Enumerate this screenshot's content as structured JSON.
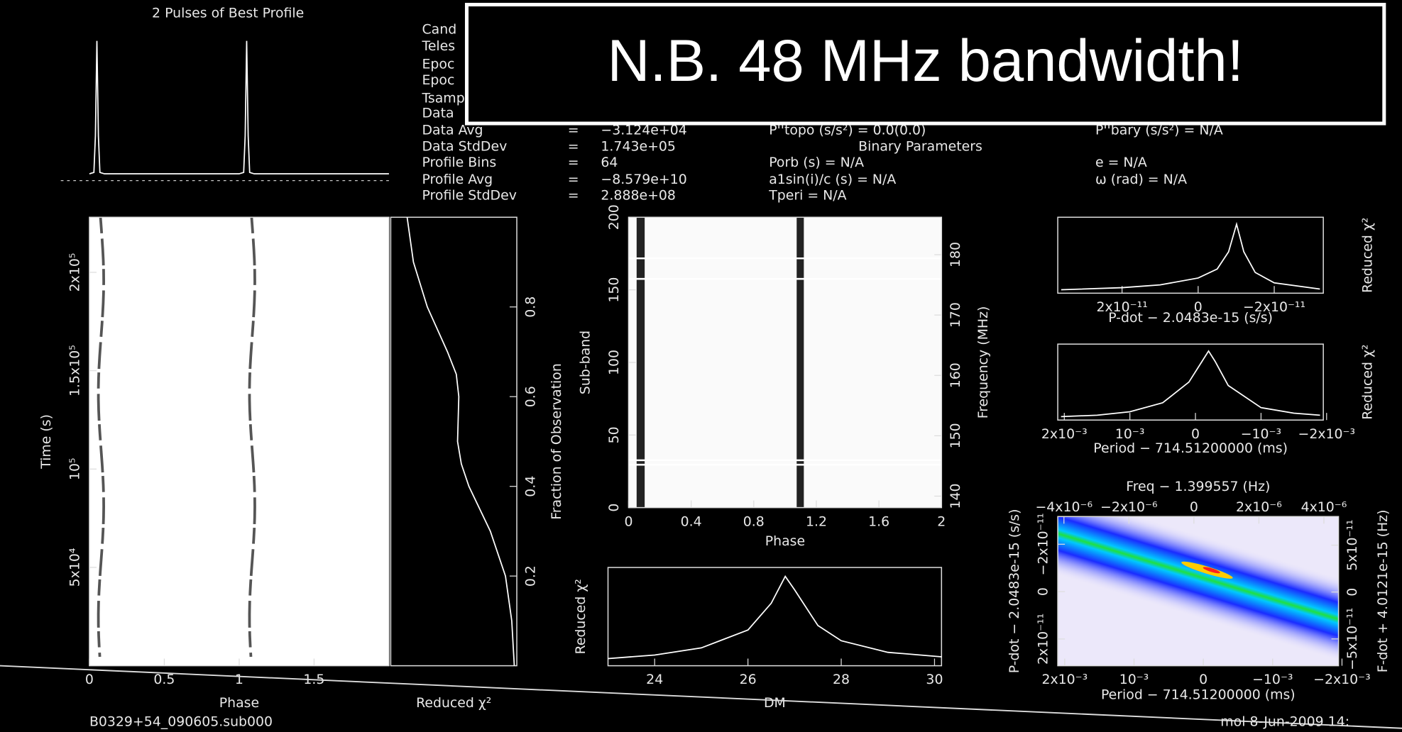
{
  "banner": "N.B. 48 MHz bandwidth!",
  "info": {
    "left": [
      [
        "Cand"
      ],
      [
        "Teles"
      ],
      [
        "Epoc"
      ],
      [
        "Epoc"
      ],
      [
        "Tsamp"
      ],
      [
        "Data"
      ],
      [
        "Data Avg",
        "=",
        "−3.124e+04"
      ],
      [
        "Data StdDev",
        "=",
        "1.743e+05"
      ],
      [
        "Profile Bins",
        "=",
        "64"
      ],
      [
        "Profile Avg",
        "=",
        "−8.579e+10"
      ],
      [
        "Profile StdDev",
        "=",
        "2.888e+08"
      ]
    ],
    "middle": [
      "P''topo (s/s²)  =  0.0(0.0)",
      "Binary Parameters",
      "Porb (s) = N/A",
      "a1sin(i)/c (s) = N/A",
      "Tperi = N/A"
    ],
    "right": [
      "P''bary (s/s²) = N/A",
      "e = N/A",
      "ω (rad) = N/A"
    ]
  },
  "footer": {
    "left": "B0329+54_090605.sub000",
    "right": "mol   8-Jun-2009  14:"
  },
  "chart_data": [
    {
      "type": "line",
      "title": "2 Pulses of Best Profile",
      "color": "#ffffff",
      "x": [
        0,
        0.03,
        0.04,
        0.05,
        0.06,
        0.07,
        0.1,
        1.0,
        1.03,
        1.04,
        1.05,
        1.06,
        1.07,
        1.1,
        2
      ],
      "values": [
        0.02,
        0.03,
        0.3,
        1,
        0.3,
        0.03,
        0.02,
        0.02,
        0.03,
        0.3,
        1,
        0.3,
        0.03,
        0.02,
        0.02
      ],
      "xlim": [
        0,
        2
      ],
      "ylim": [
        -0.05,
        1.05
      ]
    },
    {
      "type": "image",
      "x_label": "Phase",
      "y_label": "Time (s)",
      "xlim": [
        0,
        2
      ],
      "xticks": [
        0,
        0.5,
        1,
        1.5
      ],
      "ylim": [
        0,
        228000
      ],
      "yticks": [
        {
          "value": 50000,
          "label": "5x10⁴"
        },
        {
          "value": 100000,
          "label": "10⁵"
        },
        {
          "value": 150000,
          "label": "1.5x10⁵"
        },
        {
          "value": 200000,
          "label": "2x10⁵"
        }
      ]
    },
    {
      "type": "line",
      "orientation": "vertical",
      "x_label": "Reduced χ²",
      "y_label": "Fraction of Observation",
      "color": "#ffffff",
      "y": [
        0,
        0.1,
        0.2,
        0.3,
        0.4,
        0.45,
        0.5,
        0.6,
        0.65,
        0.7,
        0.8,
        0.9,
        1.0
      ],
      "values": [
        0.98,
        0.96,
        0.91,
        0.79,
        0.62,
        0.56,
        0.53,
        0.54,
        0.52,
        0.45,
        0.29,
        0.18,
        0.13
      ],
      "xlim": [
        0,
        1
      ],
      "ylim": [
        0,
        1
      ],
      "yticks": [
        0.2,
        0.4,
        0.6,
        0.8
      ]
    },
    {
      "type": "image",
      "x_label": "Phase",
      "y_label": "Sub-band",
      "y2_label": "Frequency (MHz)",
      "xlim": [
        0,
        2
      ],
      "xticks": [
        0,
        0.4,
        0.8,
        1.2,
        1.6,
        2
      ],
      "ylim": [
        0,
        200
      ],
      "yticks": [
        0,
        50,
        100,
        150,
        200
      ],
      "y2lim": [
        138.1,
        186.2
      ],
      "y2ticks": [
        140,
        150,
        160,
        170,
        180
      ]
    },
    {
      "type": "line",
      "x_label": "DM",
      "y_label": "Reduced χ²",
      "color": "#ffffff",
      "x": [
        23,
        24,
        25,
        26,
        26.5,
        26.8,
        27,
        27.5,
        28,
        29,
        30.15
      ],
      "values": [
        0.08,
        0.12,
        0.2,
        0.4,
        0.7,
        1.0,
        0.85,
        0.45,
        0.28,
        0.15,
        0.1
      ],
      "xlim": [
        23,
        30.15
      ],
      "xticks": [
        24,
        26,
        28,
        30
      ],
      "ylim": [
        0,
        1.1
      ]
    },
    {
      "type": "line",
      "x_label": "P-dot − 2.0483e-15 (s/s)",
      "y2_label": "Reduced χ²",
      "color": "#ffffff",
      "x": [
        3.6e-11,
        2e-11,
        1e-11,
        0,
        -5e-12,
        -8e-12,
        -1.01e-11,
        -1.2e-11,
        -1.5e-11,
        -2e-11,
        -3.2e-11
      ],
      "values": [
        0.05,
        0.08,
        0.12,
        0.22,
        0.35,
        0.6,
        1.0,
        0.6,
        0.3,
        0.15,
        0.06
      ],
      "xlim": [
        3.69e-11,
        -3.29e-11
      ],
      "xticks": [
        {
          "value": 2e-11,
          "label": "2x10⁻¹¹"
        },
        0,
        {
          "value": -2e-11,
          "label": "−2x10⁻¹¹"
        }
      ],
      "ylim": [
        0,
        1.1
      ]
    },
    {
      "type": "line",
      "x_label": "Period − 714.51200000 (ms)",
      "y2_label": "Reduced χ²",
      "color": "#ffffff",
      "x": [
        0.00205,
        0.0015,
        0.001,
        0.0005,
        0.0001,
        -0.0001,
        -0.0002,
        -0.0003,
        -0.0005,
        -0.001,
        -0.0015,
        -0.0019
      ],
      "values": [
        0.05,
        0.07,
        0.12,
        0.25,
        0.55,
        0.85,
        1.0,
        0.85,
        0.5,
        0.18,
        0.1,
        0.07
      ],
      "xlim": [
        0.0021,
        -0.00195
      ],
      "xticks": [
        {
          "value": 0.002,
          "label": "2x10⁻³"
        },
        {
          "value": 0.001,
          "label": "10⁻³"
        },
        0,
        {
          "value": -0.001,
          "label": "−10⁻³"
        },
        {
          "value": -0.002,
          "label": "−2x10⁻³"
        }
      ],
      "ylim": [
        0,
        1.1
      ]
    },
    {
      "type": "image",
      "x_label": "Period − 714.51200000 (ms)",
      "x2_label": "Freq − 1.399557 (Hz)",
      "y_label": "P-dot − 2.0483e-15 (s/s)",
      "y2_label": "F-dot + 4.0121e-15 (Hz)",
      "xlim": [
        0.0021,
        -0.00195
      ],
      "xticks": [
        {
          "value": 0.002,
          "label": "2x10⁻³"
        },
        {
          "value": 0.001,
          "label": "10⁻³"
        },
        0,
        {
          "value": -0.001,
          "label": "−10⁻³"
        },
        {
          "value": -0.002,
          "label": "−2x10⁻³"
        }
      ],
      "x2lim": [
        -4.19e-06,
        4.45e-06
      ],
      "x2ticks": [
        {
          "value": -4e-06,
          "label": "−4x10⁻⁶"
        },
        {
          "value": -2e-06,
          "label": "−2x10⁻⁶"
        },
        0,
        {
          "value": 2e-06,
          "label": "2x10⁻⁶"
        },
        {
          "value": 4e-06,
          "label": "4x10⁻⁶"
        }
      ],
      "ylim": [
        3.13e-11,
        -3.17e-11
      ],
      "yticks": [
        {
          "value": 2e-11,
          "label": "2x10⁻¹¹"
        },
        0,
        {
          "value": -2e-11,
          "label": "−2x10⁻¹¹"
        }
      ],
      "y2lim": [
        -7.86e-11,
        8.05e-11
      ],
      "y2ticks": [
        {
          "value": 5e-11,
          "label": "5x10⁻¹¹"
        },
        0,
        {
          "value": -5e-11,
          "label": "−5x10⁻¹¹"
        }
      ]
    }
  ]
}
